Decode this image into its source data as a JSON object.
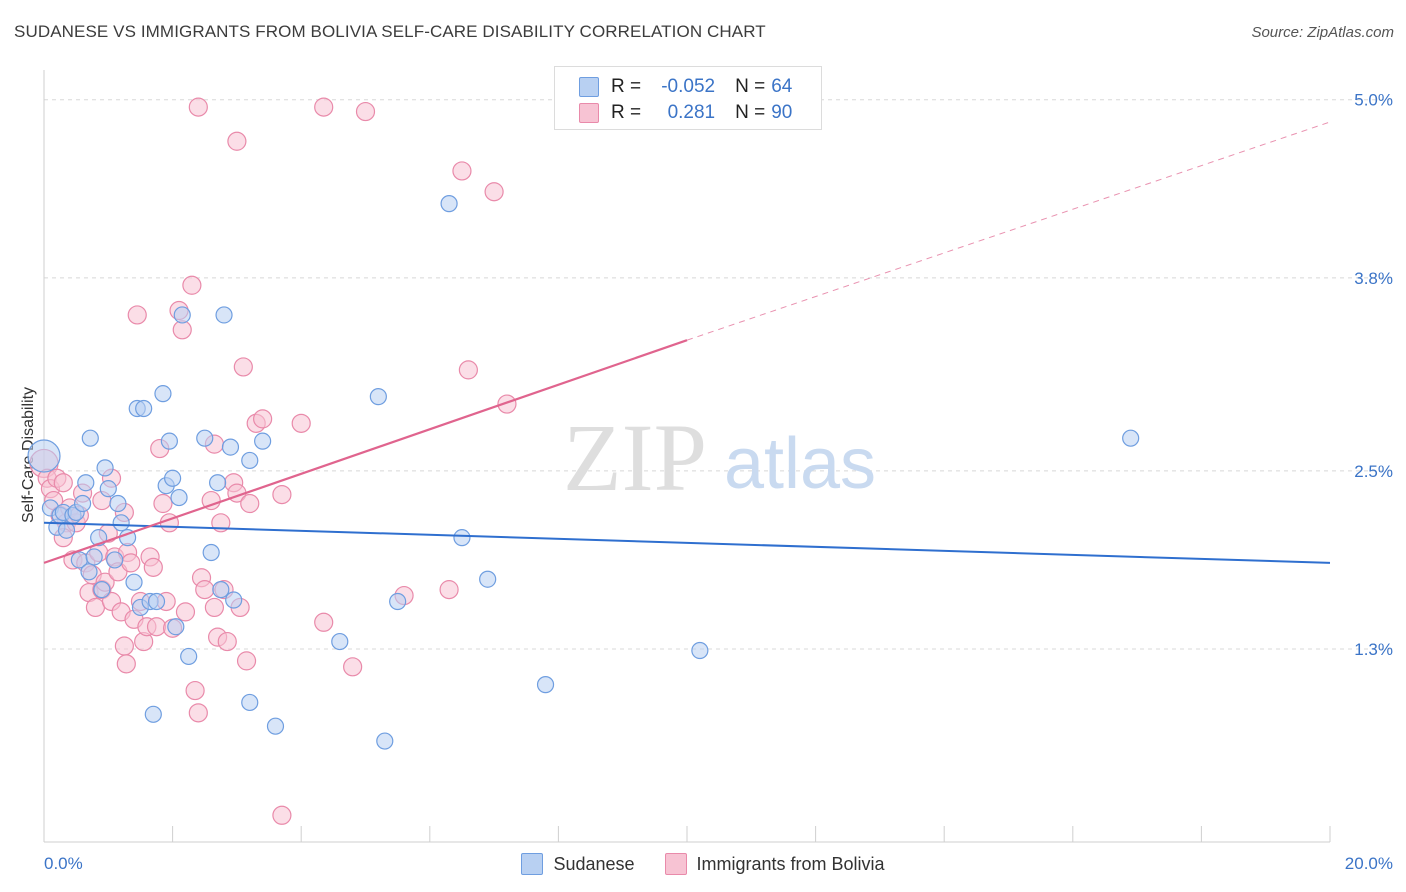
{
  "title": "SUDANESE VS IMMIGRANTS FROM BOLIVIA SELF-CARE DISABILITY CORRELATION CHART",
  "source": "Source: ZipAtlas.com",
  "watermark": {
    "zip": "ZIP",
    "atlas": "atlas"
  },
  "legend_top": {
    "rows": [
      {
        "r_label": "R =",
        "r_value": "-0.052",
        "n_label": "N =",
        "n_value": "64"
      },
      {
        "r_label": "R =",
        "r_value": "0.281",
        "n_label": "N =",
        "n_value": "90"
      }
    ]
  },
  "legend_bottom": [
    "Sudanese",
    "Immigrants from Bolivia"
  ],
  "colors": {
    "blue_fill": "#b8d0f2",
    "blue_stroke": "#6f9ee0",
    "blue_line": "#2f6fcf",
    "pink_fill": "#f7c3d3",
    "pink_stroke": "#e98aaa",
    "pink_line": "#e0648e",
    "axis_label": "#3b74c7",
    "grid": "#d8d8d8"
  },
  "chart_data": {
    "type": "scatter",
    "title": "SUDANESE VS IMMIGRANTS FROM BOLIVIA SELF-CARE DISABILITY CORRELATION CHART",
    "xlabel": "",
    "ylabel": "Self-Care Disability",
    "xlim": [
      0.0,
      20.0
    ],
    "ylim": [
      0.0,
      5.2
    ],
    "x_tick_labels": [
      "0.0%",
      "20.0%"
    ],
    "y_ticks": [
      1.3,
      2.5,
      3.8,
      5.0
    ],
    "y_tick_labels": [
      "1.3%",
      "2.5%",
      "3.8%",
      "5.0%"
    ],
    "grid": true,
    "legend_position": "top-center",
    "series": [
      {
        "name": "Sudanese",
        "color": "#6f9ee0",
        "r": -0.052,
        "n": 64,
        "trend": {
          "x": [
            0.0,
            20.0
          ],
          "y": [
            2.15,
            1.88
          ],
          "style": "solid"
        },
        "points": [
          [
            0.0,
            2.6
          ],
          [
            0.1,
            2.25
          ],
          [
            0.2,
            2.12
          ],
          [
            0.25,
            2.2
          ],
          [
            0.3,
            2.22
          ],
          [
            0.35,
            2.1
          ],
          [
            0.45,
            2.2
          ],
          [
            0.5,
            2.22
          ],
          [
            0.55,
            1.9
          ],
          [
            0.6,
            2.28
          ],
          [
            0.65,
            2.42
          ],
          [
            0.7,
            1.82
          ],
          [
            0.72,
            2.72
          ],
          [
            0.78,
            1.92
          ],
          [
            0.85,
            2.05
          ],
          [
            0.9,
            1.7
          ],
          [
            0.95,
            2.52
          ],
          [
            1.0,
            2.38
          ],
          [
            1.1,
            1.9
          ],
          [
            1.15,
            2.28
          ],
          [
            1.2,
            2.15
          ],
          [
            1.3,
            2.05
          ],
          [
            1.4,
            1.75
          ],
          [
            1.45,
            2.92
          ],
          [
            1.55,
            2.92
          ],
          [
            1.5,
            1.58
          ],
          [
            1.65,
            1.62
          ],
          [
            1.7,
            0.86
          ],
          [
            1.75,
            1.62
          ],
          [
            1.85,
            3.02
          ],
          [
            1.9,
            2.4
          ],
          [
            1.95,
            2.7
          ],
          [
            2.0,
            2.45
          ],
          [
            2.05,
            1.45
          ],
          [
            2.1,
            2.32
          ],
          [
            2.15,
            3.55
          ],
          [
            2.25,
            1.25
          ],
          [
            2.5,
            2.72
          ],
          [
            2.6,
            1.95
          ],
          [
            2.7,
            2.42
          ],
          [
            2.75,
            1.7
          ],
          [
            2.8,
            3.55
          ],
          [
            2.9,
            2.66
          ],
          [
            2.95,
            1.63
          ],
          [
            3.2,
            2.57
          ],
          [
            3.2,
            0.94
          ],
          [
            3.4,
            2.7
          ],
          [
            3.6,
            0.78
          ],
          [
            4.6,
            1.35
          ],
          [
            5.2,
            3.0
          ],
          [
            5.3,
            0.68
          ],
          [
            5.5,
            1.62
          ],
          [
            6.3,
            4.3
          ],
          [
            6.5,
            2.05
          ],
          [
            6.9,
            1.77
          ],
          [
            7.8,
            1.06
          ],
          [
            10.2,
            1.29
          ],
          [
            16.9,
            2.72
          ]
        ]
      },
      {
        "name": "Immigrants from Bolivia",
        "color": "#e98aaa",
        "r": 0.281,
        "n": 90,
        "trend": {
          "x": [
            0.0,
            10.0
          ],
          "y": [
            1.88,
            3.38
          ],
          "style": "solid"
        },
        "trend_extension": {
          "x": [
            10.0,
            20.0
          ],
          "y": [
            3.38,
            4.85
          ],
          "style": "dashed"
        },
        "points": [
          [
            0.0,
            2.55
          ],
          [
            0.05,
            2.45
          ],
          [
            0.1,
            2.38
          ],
          [
            0.15,
            2.3
          ],
          [
            0.2,
            2.45
          ],
          [
            0.25,
            2.2
          ],
          [
            0.3,
            2.42
          ],
          [
            0.35,
            2.15
          ],
          [
            0.4,
            2.25
          ],
          [
            0.45,
            1.9
          ],
          [
            0.5,
            2.15
          ],
          [
            0.55,
            2.2
          ],
          [
            0.6,
            2.35
          ],
          [
            0.65,
            1.88
          ],
          [
            0.7,
            1.68
          ],
          [
            0.75,
            1.8
          ],
          [
            0.8,
            1.58
          ],
          [
            0.85,
            1.95
          ],
          [
            0.9,
            1.7
          ],
          [
            0.95,
            1.75
          ],
          [
            1.0,
            2.08
          ],
          [
            1.05,
            1.62
          ],
          [
            1.1,
            1.92
          ],
          [
            1.15,
            1.82
          ],
          [
            1.2,
            1.55
          ],
          [
            1.25,
            1.32
          ],
          [
            1.28,
            1.2
          ],
          [
            1.3,
            1.95
          ],
          [
            1.35,
            1.88
          ],
          [
            1.4,
            1.5
          ],
          [
            1.45,
            3.55
          ],
          [
            1.5,
            1.62
          ],
          [
            1.55,
            1.35
          ],
          [
            1.6,
            1.45
          ],
          [
            1.65,
            1.92
          ],
          [
            1.7,
            1.85
          ],
          [
            1.75,
            1.45
          ],
          [
            1.8,
            2.65
          ],
          [
            1.85,
            2.28
          ],
          [
            1.9,
            1.62
          ],
          [
            1.95,
            2.15
          ],
          [
            2.0,
            1.44
          ],
          [
            2.1,
            3.58
          ],
          [
            2.15,
            3.45
          ],
          [
            2.2,
            1.55
          ],
          [
            2.3,
            3.75
          ],
          [
            2.35,
            1.02
          ],
          [
            2.4,
            0.87
          ],
          [
            2.45,
            1.78
          ],
          [
            2.5,
            1.7
          ],
          [
            2.6,
            2.3
          ],
          [
            2.65,
            1.58
          ],
          [
            2.7,
            1.38
          ],
          [
            2.75,
            2.15
          ],
          [
            2.8,
            1.7
          ],
          [
            2.85,
            1.35
          ],
          [
            2.95,
            2.42
          ],
          [
            3.0,
            2.35
          ],
          [
            3.05,
            1.58
          ],
          [
            3.1,
            3.2
          ],
          [
            3.15,
            1.22
          ],
          [
            3.2,
            2.28
          ],
          [
            3.3,
            2.82
          ],
          [
            3.4,
            2.85
          ],
          [
            3.7,
            2.34
          ],
          [
            4.0,
            2.82
          ],
          [
            4.35,
            1.48
          ],
          [
            4.8,
            1.18
          ],
          [
            5.6,
            1.66
          ],
          [
            6.3,
            1.7
          ],
          [
            6.6,
            3.18
          ],
          [
            7.2,
            2.95
          ],
          [
            2.4,
            4.95
          ],
          [
            3.0,
            4.72
          ],
          [
            4.35,
            4.95
          ],
          [
            5.0,
            4.92
          ],
          [
            6.5,
            4.52
          ],
          [
            7.0,
            4.38
          ],
          [
            3.7,
            0.18
          ],
          [
            2.65,
            2.68
          ],
          [
            1.05,
            2.45
          ],
          [
            1.25,
            2.22
          ],
          [
            0.3,
            2.05
          ],
          [
            0.9,
            2.3
          ]
        ]
      }
    ]
  }
}
